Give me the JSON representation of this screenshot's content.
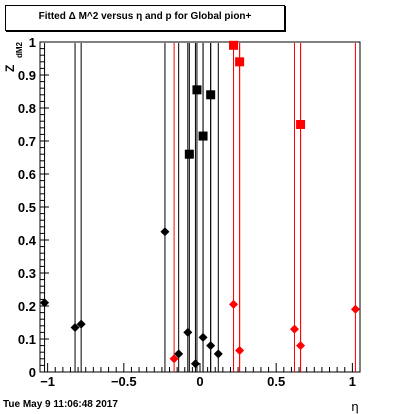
{
  "chart_data": {
    "type": "scatter",
    "title": "Fitted Δ M^2 versus η and p for Global pion+",
    "xlabel": "η",
    "ylabel": "Z dM2",
    "xlim": [
      -1.05,
      1.05
    ],
    "ylim": [
      0,
      1
    ],
    "x_ticks": [
      -1,
      -0.5,
      0,
      0.5,
      1
    ],
    "x_tick_labels": [
      "−1",
      "−0.5",
      "0",
      "0.5",
      "1"
    ],
    "y_ticks": [
      0,
      0.1,
      0.2,
      0.3,
      0.4,
      0.5,
      0.6,
      0.7,
      0.8,
      0.9,
      1
    ],
    "y_tick_labels": [
      "0",
      "0.1",
      "0.2",
      "0.3",
      "0.4",
      "0.5",
      "0.6",
      "0.7",
      "0.8",
      "0.9",
      "1"
    ],
    "grid": false,
    "series": [
      {
        "color": "#000000",
        "marker": "diamond",
        "points": [
          {
            "x": -1.02,
            "y": 0.21
          },
          {
            "x": -0.82,
            "y": 0.135
          },
          {
            "x": -0.78,
            "y": 0.145
          },
          {
            "x": -0.23,
            "y": 0.425
          },
          {
            "x": -0.14,
            "y": 0.055
          },
          {
            "x": -0.08,
            "y": 0.12
          },
          {
            "x": -0.03,
            "y": 0.025
          },
          {
            "x": 0.02,
            "y": 0.105
          },
          {
            "x": 0.07,
            "y": 0.08
          },
          {
            "x": 0.12,
            "y": 0.055
          }
        ]
      },
      {
        "color": "#000000",
        "marker": "square",
        "points": [
          {
            "x": -0.07,
            "y": 0.66
          },
          {
            "x": -0.02,
            "y": 0.855
          },
          {
            "x": 0.02,
            "y": 0.715
          },
          {
            "x": 0.07,
            "y": 0.84
          }
        ]
      },
      {
        "color": "#ff0000",
        "marker": "diamond",
        "points": [
          {
            "x": -0.17,
            "y": 0.04
          },
          {
            "x": 0.22,
            "y": 0.205
          },
          {
            "x": 0.26,
            "y": 0.065
          },
          {
            "x": 0.62,
            "y": 0.13
          },
          {
            "x": 0.66,
            "y": 0.08
          },
          {
            "x": 1.02,
            "y": 0.19
          }
        ]
      },
      {
        "color": "#ff0000",
        "marker": "square",
        "points": [
          {
            "x": 0.22,
            "y": 0.99
          },
          {
            "x": 0.26,
            "y": 0.94
          },
          {
            "x": 0.66,
            "y": 0.75
          }
        ]
      }
    ]
  },
  "footer": {
    "timestamp": "Tue May  9 11:06:48 2017"
  }
}
